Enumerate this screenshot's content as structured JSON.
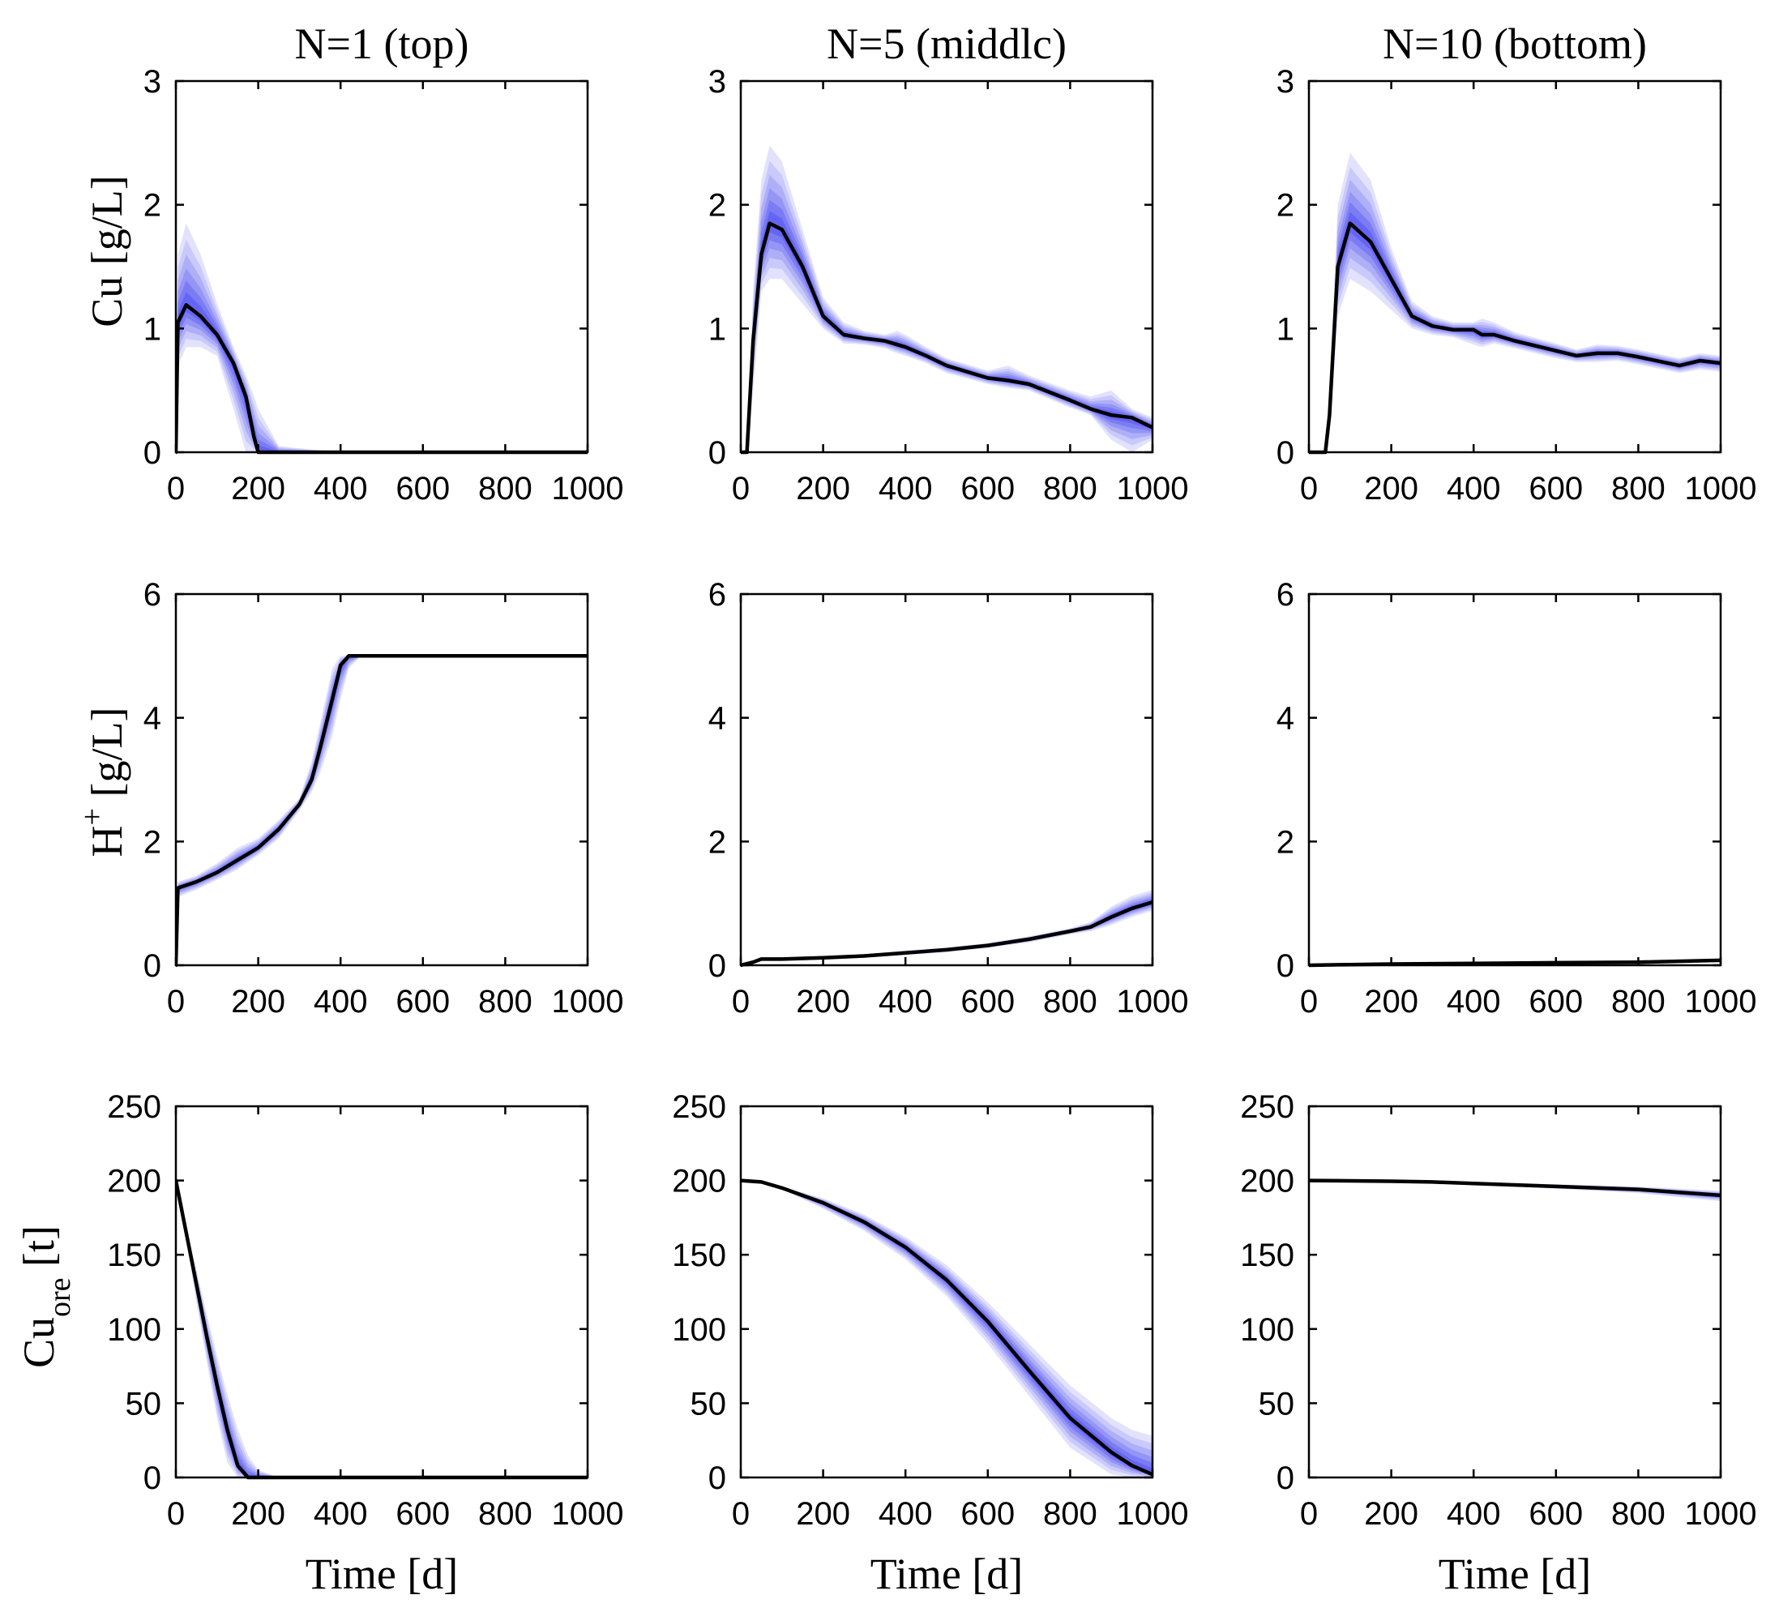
{
  "figure": {
    "column_titles": [
      "N=1 (top)",
      "N=5 (middlc)",
      "N=10 (bottom)"
    ],
    "row_ylabels": [
      {
        "base": "Cu [g/L]",
        "sup": "",
        "sub": ""
      },
      {
        "base": "H",
        "sup": "+",
        "sub": "",
        "tail": " [g/L]"
      },
      {
        "base": "Cu",
        "sup": "",
        "sub": "ore",
        "tail": " [t]"
      }
    ],
    "xlabel": "Time [d]"
  },
  "colors": {
    "band": "#3b3bf0",
    "mean": "#000000"
  },
  "chart_data": [
    {
      "type": "line",
      "row": 0,
      "col": 0,
      "title": "N=1 (top)",
      "ylabel": "Cu [g/L]",
      "xlabel": "",
      "xlim": [
        0,
        1000
      ],
      "ylim": [
        0,
        3
      ],
      "xticks": [
        0,
        200,
        400,
        600,
        800,
        1000
      ],
      "yticks": [
        0,
        1,
        2,
        3
      ],
      "x": [
        0,
        5,
        25,
        60,
        100,
        140,
        170,
        190,
        200,
        250,
        400,
        600,
        800,
        1000
      ],
      "mean": [
        0,
        1.05,
        1.19,
        1.1,
        0.95,
        0.72,
        0.45,
        0.12,
        0,
        0,
        0,
        0,
        0,
        0
      ],
      "upper": [
        0,
        1.6,
        1.85,
        1.6,
        1.2,
        0.85,
        0.62,
        0.45,
        0.35,
        0.05,
        0,
        0,
        0,
        0
      ],
      "lower": [
        0,
        0.7,
        0.85,
        0.85,
        0.78,
        0.35,
        0,
        0,
        0,
        0,
        0,
        0,
        0,
        0
      ]
    },
    {
      "type": "line",
      "row": 0,
      "col": 1,
      "title": "N=5 (middlc)",
      "ylabel": "",
      "xlabel": "",
      "xlim": [
        0,
        1000
      ],
      "ylim": [
        0,
        3
      ],
      "xticks": [
        0,
        200,
        400,
        600,
        800,
        1000
      ],
      "yticks": [
        0,
        1,
        2,
        3
      ],
      "x": [
        0,
        15,
        30,
        50,
        70,
        100,
        150,
        200,
        250,
        300,
        350,
        380,
        400,
        450,
        500,
        600,
        650,
        700,
        800,
        850,
        900,
        950,
        1000
      ],
      "mean": [
        0,
        0,
        0.9,
        1.6,
        1.85,
        1.8,
        1.5,
        1.1,
        0.95,
        0.92,
        0.9,
        0.87,
        0.85,
        0.78,
        0.7,
        0.6,
        0.58,
        0.55,
        0.42,
        0.35,
        0.3,
        0.28,
        0.2
      ],
      "upper": [
        0,
        0,
        1.3,
        2.2,
        2.48,
        2.35,
        1.8,
        1.25,
        1.05,
        0.98,
        0.95,
        0.98,
        0.95,
        0.85,
        0.76,
        0.66,
        0.7,
        0.62,
        0.5,
        0.45,
        0.5,
        0.35,
        0.28
      ],
      "lower": [
        0,
        0,
        0.5,
        1.3,
        1.4,
        1.4,
        1.2,
        1.0,
        0.88,
        0.87,
        0.84,
        0.8,
        0.78,
        0.72,
        0.64,
        0.55,
        0.52,
        0.5,
        0.36,
        0.3,
        0.1,
        0,
        0.1
      ]
    },
    {
      "type": "line",
      "row": 0,
      "col": 2,
      "title": "N=10 (bottom)",
      "ylabel": "",
      "xlabel": "",
      "xlim": [
        0,
        1000
      ],
      "ylim": [
        0,
        3
      ],
      "xticks": [
        0,
        200,
        400,
        600,
        800,
        1000
      ],
      "yticks": [
        0,
        1,
        2,
        3
      ],
      "x": [
        0,
        40,
        50,
        70,
        100,
        150,
        200,
        250,
        300,
        350,
        400,
        420,
        450,
        500,
        600,
        650,
        700,
        750,
        800,
        900,
        950,
        1000
      ],
      "mean": [
        0,
        0,
        0.3,
        1.5,
        1.85,
        1.7,
        1.4,
        1.1,
        1.02,
        0.99,
        0.99,
        0.95,
        0.95,
        0.9,
        0.82,
        0.78,
        0.8,
        0.8,
        0.77,
        0.7,
        0.74,
        0.72
      ],
      "upper": [
        0,
        0,
        0.5,
        2.0,
        2.42,
        2.2,
        1.65,
        1.22,
        1.1,
        1.05,
        1.05,
        1.08,
        1.05,
        0.97,
        0.88,
        0.83,
        0.87,
        0.86,
        0.83,
        0.76,
        0.8,
        0.78
      ],
      "lower": [
        0,
        0,
        0.15,
        1.1,
        1.4,
        1.3,
        1.15,
        1.0,
        0.95,
        0.93,
        0.87,
        0.85,
        0.88,
        0.84,
        0.76,
        0.73,
        0.73,
        0.74,
        0.71,
        0.64,
        0.67,
        0.65
      ]
    },
    {
      "type": "line",
      "row": 1,
      "col": 0,
      "title": "",
      "ylabel": "H+ [g/L]",
      "xlabel": "",
      "xlim": [
        0,
        1000
      ],
      "ylim": [
        0,
        6
      ],
      "xticks": [
        0,
        200,
        400,
        600,
        800,
        1000
      ],
      "yticks": [
        0,
        2,
        4,
        6
      ],
      "x": [
        0,
        5,
        50,
        100,
        150,
        200,
        250,
        300,
        330,
        350,
        380,
        400,
        420,
        450,
        500,
        600,
        800,
        1000
      ],
      "mean": [
        0,
        1.25,
        1.35,
        1.5,
        1.7,
        1.9,
        2.2,
        2.6,
        3.0,
        3.5,
        4.3,
        4.85,
        5.0,
        5.0,
        5.0,
        5.0,
        5.0,
        5.0
      ],
      "upper": [
        0,
        1.35,
        1.45,
        1.65,
        1.9,
        2.05,
        2.35,
        2.7,
        3.3,
        3.9,
        4.8,
        5.0,
        5.0,
        5.0,
        5.0,
        5.0,
        5.0,
        5.0
      ],
      "lower": [
        0,
        1.1,
        1.22,
        1.38,
        1.55,
        1.78,
        2.05,
        2.5,
        2.8,
        3.1,
        3.7,
        4.3,
        4.8,
        5.0,
        5.0,
        5.0,
        5.0,
        5.0
      ]
    },
    {
      "type": "line",
      "row": 1,
      "col": 1,
      "title": "",
      "ylabel": "",
      "xlabel": "",
      "xlim": [
        0,
        1000
      ],
      "ylim": [
        0,
        6
      ],
      "xticks": [
        0,
        200,
        400,
        600,
        800,
        1000
      ],
      "yticks": [
        0,
        2,
        4,
        6
      ],
      "x": [
        0,
        30,
        50,
        100,
        200,
        300,
        400,
        500,
        600,
        700,
        800,
        850,
        900,
        950,
        1000
      ],
      "mean": [
        0,
        0.05,
        0.1,
        0.1,
        0.12,
        0.15,
        0.2,
        0.25,
        0.32,
        0.42,
        0.55,
        0.62,
        0.78,
        0.92,
        1.02
      ],
      "upper": [
        0,
        0.08,
        0.13,
        0.13,
        0.15,
        0.18,
        0.24,
        0.29,
        0.36,
        0.47,
        0.6,
        0.7,
        0.95,
        1.12,
        1.22
      ],
      "lower": [
        0,
        0.03,
        0.07,
        0.07,
        0.09,
        0.12,
        0.17,
        0.21,
        0.28,
        0.37,
        0.5,
        0.55,
        0.65,
        0.78,
        0.88
      ]
    },
    {
      "type": "line",
      "row": 1,
      "col": 2,
      "title": "",
      "ylabel": "",
      "xlabel": "",
      "xlim": [
        0,
        1000
      ],
      "ylim": [
        0,
        6
      ],
      "xticks": [
        0,
        200,
        400,
        600,
        800,
        1000
      ],
      "yticks": [
        0,
        2,
        4,
        6
      ],
      "x": [
        0,
        100,
        200,
        400,
        600,
        800,
        1000
      ],
      "mean": [
        0,
        0.01,
        0.02,
        0.03,
        0.04,
        0.05,
        0.08
      ],
      "upper": [
        0.02,
        0.03,
        0.04,
        0.05,
        0.06,
        0.07,
        0.1
      ],
      "lower": [
        0,
        0,
        0.01,
        0.02,
        0.03,
        0.04,
        0.06
      ]
    },
    {
      "type": "line",
      "row": 2,
      "col": 0,
      "title": "",
      "ylabel": "Cu_ore [t]",
      "xlabel": "Time [d]",
      "xlim": [
        0,
        1000
      ],
      "ylim": [
        0,
        250
      ],
      "xticks": [
        0,
        200,
        400,
        600,
        800,
        1000
      ],
      "yticks": [
        0,
        50,
        100,
        150,
        200,
        250
      ],
      "x": [
        0,
        25,
        50,
        75,
        100,
        125,
        150,
        175,
        200,
        250,
        400,
        600,
        800,
        1000
      ],
      "mean": [
        200,
        165,
        130,
        95,
        62,
        32,
        8,
        0,
        0,
        0,
        0,
        0,
        0,
        0
      ],
      "upper": [
        200,
        170,
        140,
        110,
        82,
        56,
        33,
        15,
        5,
        0,
        0,
        0,
        0,
        0
      ],
      "lower": [
        200,
        160,
        118,
        78,
        40,
        10,
        0,
        0,
        0,
        0,
        0,
        0,
        0,
        0
      ]
    },
    {
      "type": "line",
      "row": 2,
      "col": 1,
      "title": "",
      "ylabel": "",
      "xlabel": "Time [d]",
      "xlim": [
        0,
        1000
      ],
      "ylim": [
        0,
        250
      ],
      "xticks": [
        0,
        200,
        400,
        600,
        800,
        1000
      ],
      "yticks": [
        0,
        50,
        100,
        150,
        200,
        250
      ],
      "x": [
        0,
        50,
        100,
        200,
        300,
        400,
        500,
        600,
        700,
        800,
        900,
        950,
        1000
      ],
      "mean": [
        200,
        199,
        195,
        185,
        172,
        155,
        133,
        105,
        72,
        40,
        17,
        8,
        2
      ],
      "upper": [
        200,
        199,
        196,
        188,
        177,
        162,
        143,
        118,
        90,
        62,
        40,
        32,
        28
      ],
      "lower": [
        200,
        199,
        194,
        181,
        166,
        147,
        122,
        90,
        55,
        20,
        2,
        0,
        0
      ]
    },
    {
      "type": "line",
      "row": 2,
      "col": 2,
      "title": "",
      "ylabel": "",
      "xlabel": "Time [d]",
      "xlim": [
        0,
        1000
      ],
      "ylim": [
        0,
        250
      ],
      "xticks": [
        0,
        200,
        400,
        600,
        800,
        1000
      ],
      "yticks": [
        0,
        50,
        100,
        150,
        200,
        250
      ],
      "x": [
        0,
        200,
        300,
        400,
        600,
        800,
        1000
      ],
      "mean": [
        200,
        199.5,
        199,
        198,
        196,
        194,
        190
      ],
      "upper": [
        200,
        200,
        199.5,
        199,
        197.5,
        196,
        193
      ],
      "lower": [
        200,
        199,
        198.5,
        197,
        194.5,
        191.5,
        186
      ]
    }
  ]
}
